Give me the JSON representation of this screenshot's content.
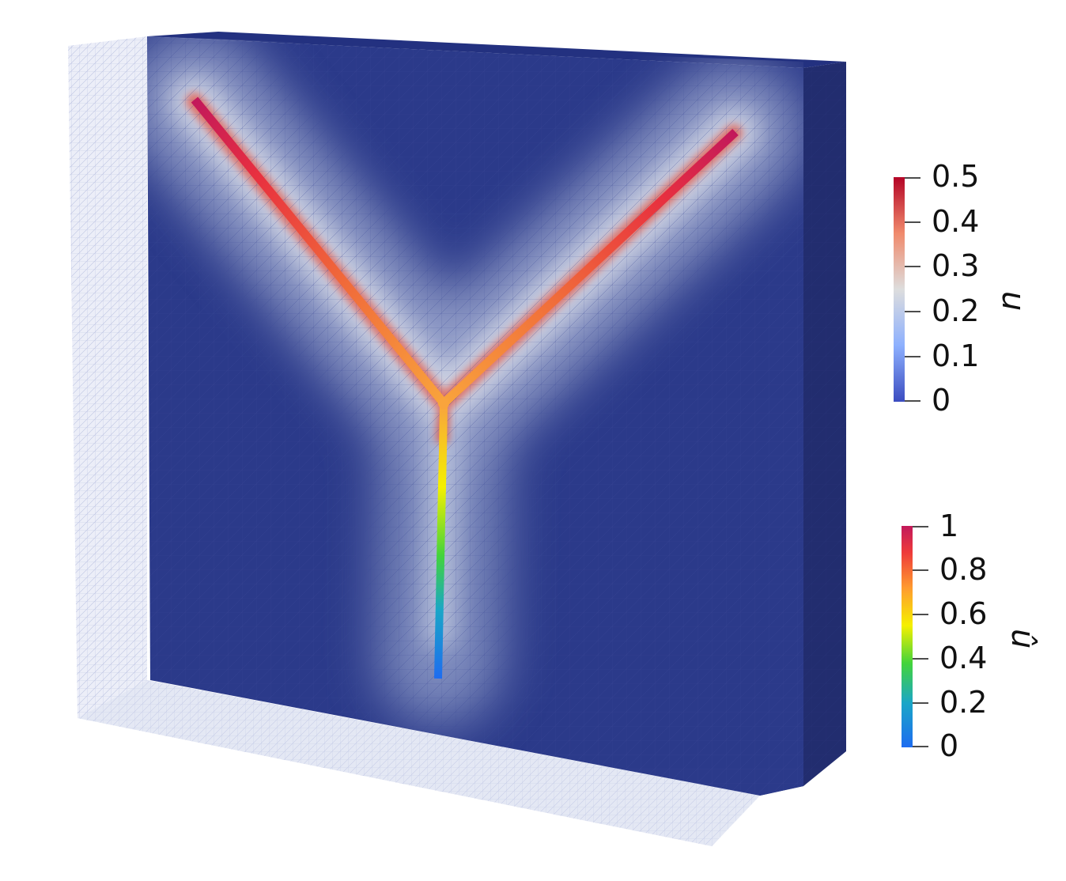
{
  "colorbars": [
    {
      "title": "u",
      "ticks": [
        "0.5",
        "0.4",
        "0.3",
        "0.2",
        "0.1",
        "0"
      ],
      "colors": [
        "#b40426",
        "#f08a6c",
        "#dddddd",
        "#8db0fe",
        "#3b4cc0"
      ]
    },
    {
      "title": "û",
      "ticks": [
        "1",
        "0.8",
        "0.6",
        "0.4",
        "0.2",
        "0"
      ],
      "colors": [
        "#c2185b",
        "#ee3a3a",
        "#ff9b2f",
        "#f5f000",
        "#43d43b",
        "#1aa6c7",
        "#1e6cf0"
      ]
    }
  ],
  "graph_colors": {
    "stem_bottom": "#1e6cf0",
    "stem_mid": "#43d43b",
    "junction": "#f9a43c",
    "arm_end": "#c2185b"
  },
  "volume_colors": {
    "field_low": "#2b3a8a",
    "field_glow": "#c4ccdc",
    "mesh_ghost": "#dfe2f2"
  }
}
